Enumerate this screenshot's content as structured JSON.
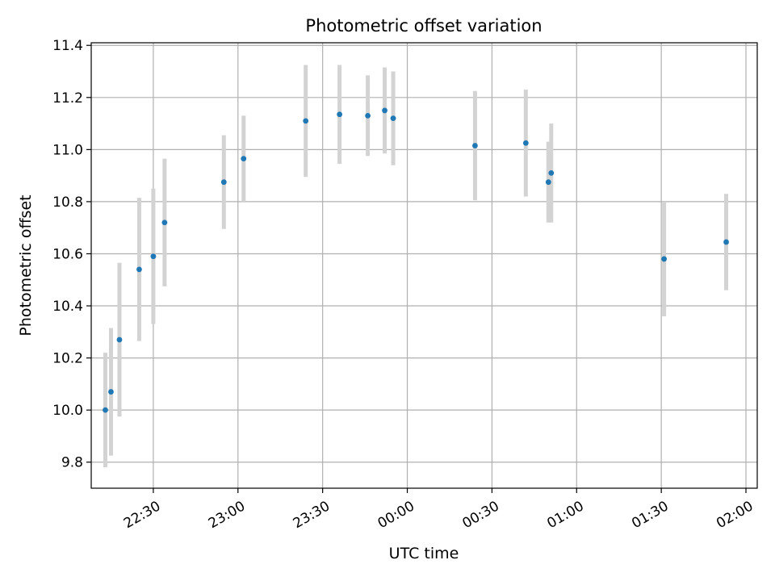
{
  "chart_data": {
    "type": "scatter",
    "title": "Photometric offset variation",
    "xlabel": "UTC time",
    "ylabel": "Photometric offset",
    "grid": true,
    "x_ticks": [
      "22:30",
      "23:00",
      "23:30",
      "00:00",
      "00:30",
      "01:00",
      "01:30",
      "02:00"
    ],
    "y_ticks": [
      "9.8",
      "10.0",
      "10.2",
      "10.4",
      "10.6",
      "10.8",
      "11.0",
      "11.2",
      "11.4"
    ],
    "xlim": [
      "22:08",
      "02:04"
    ],
    "ylim": [
      9.7,
      11.41
    ],
    "series": [
      {
        "x": [
          "22:13",
          "22:15",
          "22:18",
          "22:25",
          "22:30",
          "22:34",
          "22:55",
          "23:02",
          "23:24",
          "23:36",
          "23:46",
          "23:52",
          "23:55",
          "00:24",
          "00:42",
          "00:50",
          "00:51",
          "01:31",
          "01:53"
        ],
        "y": [
          10.0,
          10.07,
          10.27,
          10.54,
          10.59,
          10.72,
          10.875,
          10.965,
          11.11,
          11.135,
          11.13,
          11.15,
          11.12,
          11.015,
          11.025,
          10.875,
          10.91,
          10.58,
          10.645
        ],
        "error": [
          0.22,
          0.245,
          0.295,
          0.275,
          0.26,
          0.245,
          0.18,
          0.165,
          0.215,
          0.19,
          0.155,
          0.165,
          0.18,
          0.21,
          0.205,
          0.155,
          0.19,
          0.22,
          0.185
        ]
      }
    ],
    "colors": {
      "marker": "#1f77b4",
      "errorbar": "#d3d3d3",
      "grid": "#b0b0b0"
    }
  }
}
